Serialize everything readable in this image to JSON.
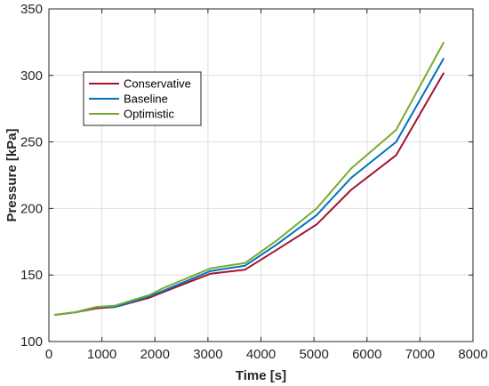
{
  "chart_data": {
    "type": "line",
    "xlabel": "Time [s]",
    "ylabel": "Pressure [kPa]",
    "xlim": [
      0,
      8000
    ],
    "ylim": [
      100,
      350
    ],
    "xticks": [
      0,
      1000,
      2000,
      3000,
      4000,
      5000,
      6000,
      7000,
      8000
    ],
    "yticks": [
      100,
      150,
      200,
      250,
      300,
      350
    ],
    "grid": true,
    "legend_position": "top-left",
    "series": [
      {
        "name": "Conservative",
        "color": "#A2142F",
        "x": [
          100,
          500,
          900,
          1250,
          1900,
          2150,
          3050,
          3700,
          4300,
          5050,
          5700,
          6550,
          7450
        ],
        "y": [
          120,
          122,
          125,
          126,
          133,
          137,
          151,
          154,
          169,
          188,
          214,
          240,
          302
        ]
      },
      {
        "name": "Baseline",
        "color": "#0072BD",
        "x": [
          100,
          500,
          900,
          1250,
          1900,
          2150,
          3050,
          3700,
          4300,
          5050,
          5700,
          6550,
          7450
        ],
        "y": [
          120,
          122,
          126,
          126,
          134,
          138,
          153,
          157,
          173,
          195,
          223,
          250,
          313
        ]
      },
      {
        "name": "Optimistic",
        "color": "#77AC30",
        "x": [
          100,
          500,
          900,
          1250,
          1900,
          2150,
          3050,
          3700,
          4300,
          5050,
          5700,
          6550,
          7450
        ],
        "y": [
          120,
          122,
          126,
          127,
          135,
          140,
          155,
          159,
          176,
          200,
          230,
          259,
          325
        ]
      }
    ]
  }
}
